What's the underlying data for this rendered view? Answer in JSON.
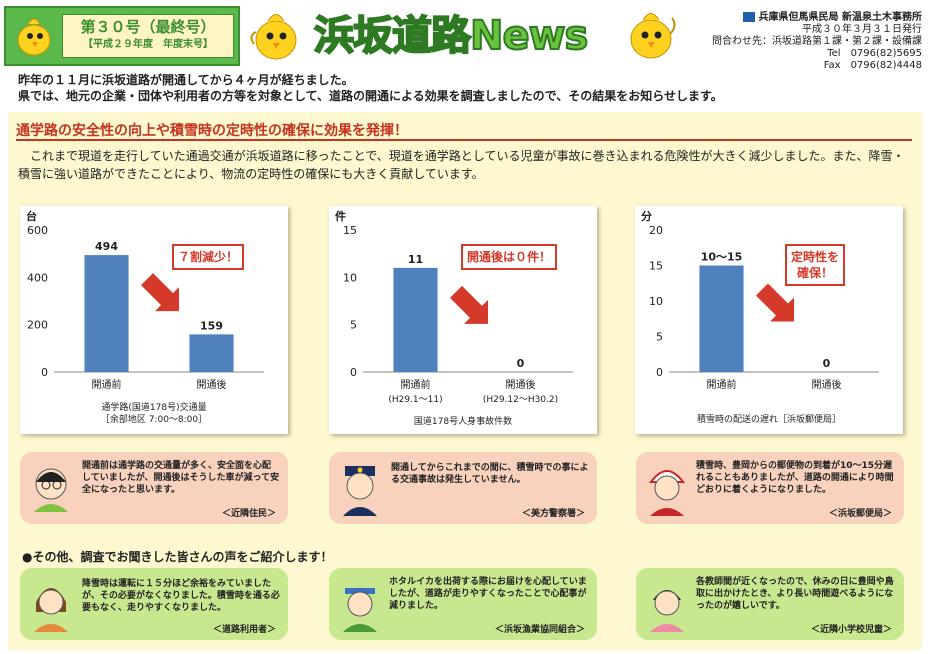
{
  "header": {
    "issue_number": "第３０号（最終号）",
    "issue_year": "【平成２９年度　年度末号】",
    "newsletter_title": "浜坂道路News",
    "issuer_org": "兵庫県但馬県民局 新温泉土木事務所",
    "issue_date": "平成３０年３月３１日発行",
    "contact": "問合わせ先：浜坂道路第１課・第２課・設備課",
    "tel": "Tel　0796(82)5695",
    "fax": "Fax　0796(82)4448"
  },
  "intro": {
    "line1": "昨年の１１月に浜坂道路が開通してから４ヶ月が経ちました。",
    "line2": "県では、地元の企業・団体や利用者の方等を対象として、道路の開通による効果を調査しましたので、その結果をお知らせします。"
  },
  "section1": {
    "headline": "通学路の安全性の向上や積雪時の定時性の確保に効果を発揮！",
    "lead": "これまで現道を走行していた通過交通が浜坂道路に移ったことで、現道を通学路としている児童が事故に巻き込まれる危険性が大きく減少しました。また、降雪・積雪に強い道路ができたことにより、物流の定時性の確保にも大きく貢献しています。"
  },
  "chart_data": [
    {
      "type": "bar",
      "unit": "台",
      "categories": [
        "開通前",
        "開通後"
      ],
      "values": [
        494,
        159
      ],
      "data_labels": [
        "494",
        "159"
      ],
      "ylim": [
        0,
        600
      ],
      "yticks": [
        "0",
        "200",
        "400",
        "600"
      ],
      "callout": "７割減少！",
      "caption": [
        "通学路(国道178号)交通量",
        "［余部地区 7:00〜8:00］"
      ],
      "bar_color": "#4f81bd"
    },
    {
      "type": "bar",
      "unit": "件",
      "categories": [
        "開通前",
        "開通後"
      ],
      "category_sub": [
        "(H29.1〜11)",
        "(H29.12〜H30.2)"
      ],
      "values": [
        11,
        0
      ],
      "data_labels": [
        "11",
        "0"
      ],
      "ylim": [
        0,
        15
      ],
      "yticks": [
        "0",
        "5",
        "10",
        "15"
      ],
      "callout": "開通後は０件！",
      "caption": [
        "国道178号人身事故件数"
      ],
      "bar_color": "#4f81bd"
    },
    {
      "type": "bar",
      "unit": "分",
      "categories": [
        "開通前",
        "開通後"
      ],
      "values": [
        15,
        0
      ],
      "data_labels": [
        "10〜15",
        "0"
      ],
      "ylim": [
        0,
        20
      ],
      "yticks": [
        "0",
        "5",
        "10",
        "15",
        "20"
      ],
      "callout": "定時性を\n確保！",
      "caption": [
        "積雪時の配送の遅れ［浜坂郵便局］"
      ],
      "bar_color": "#4f81bd"
    }
  ],
  "voices_effect": [
    {
      "text": "開通前は通学路の交通量が多く、安全面を心配していましたが、開通後はそうした車が減って安全になったと思います。",
      "signature": "＜近隣住民＞"
    },
    {
      "text": "開通してからこれまでの間に、積雪時での事による交通事故は発生していません。",
      "signature": "＜美方警察署＞"
    },
    {
      "text": "積雪時、豊岡からの郵便物の到着が10〜15分遅れることもありましたが、道路の開通により時間どおりに着くようになりました。",
      "signature": "＜浜坂郵便局＞"
    }
  ],
  "section2": {
    "headline": "●その他、調査でお聞きした皆さんの声をご紹介します！"
  },
  "voices_other": [
    {
      "text": "降雪時は運転に１５分ほど余裕をみていましたが、その必要がなくなりました。積雪時を通る必要もなく、走りやすくなりました。",
      "signature": "＜道路利用者＞"
    },
    {
      "text": "ホタルイカを出荷する際にお届けを心配していましたが、道路が走りやすくなったことで心配事が減りました。",
      "signature": "＜浜坂漁業協同組合＞"
    },
    {
      "text": "各教師間が近くなったので、休みの日に豊岡や鳥取に出かけたとき、より長い時間遊べるようになったのが嬉しいです。",
      "signature": "＜近隣小学校児童＞"
    }
  ],
  "colors": {
    "accent_red": "#c4341f",
    "panel": "#fdf8cf",
    "header_green": "#5bb84a",
    "bar": "#4f81bd"
  }
}
